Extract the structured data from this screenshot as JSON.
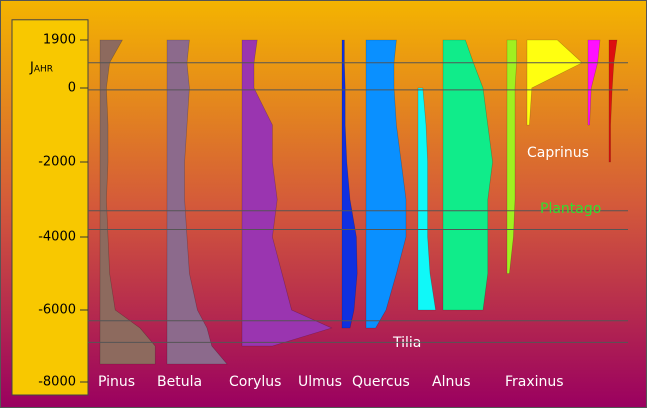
{
  "chart_data": {
    "type": "pollen-profile",
    "y_label": "Jahr",
    "ylim": [
      -8000,
      2700
    ],
    "yticks": [
      1900,
      0,
      -2000,
      -4000,
      -6000,
      -8000
    ],
    "ages": [
      1900,
      1000,
      0,
      -1000,
      -2000,
      -3000,
      -4000,
      -5000,
      -6000,
      -6500,
      -7000,
      -7500
    ],
    "zone_lines": [
      1000,
      -50,
      -3300,
      -3800,
      -6300,
      -6900
    ],
    "annotations": [
      "Plantago"
    ],
    "series": [
      {
        "name": "Pinus",
        "color": "#8d6a5e",
        "values": [
          28,
          12,
          8,
          10,
          10,
          8,
          10,
          12,
          19,
          50,
          69,
          69
        ]
      },
      {
        "name": "Betula",
        "color": "#8c6a8c",
        "values": [
          28,
          25,
          28,
          25,
          22,
          22,
          25,
          28,
          38,
          50,
          56,
          75
        ]
      },
      {
        "name": "Corylus",
        "color": "#9a35b0",
        "values": [
          19,
          15,
          15,
          38,
          38,
          44,
          38,
          50,
          62,
          112,
          38,
          null
        ]
      },
      {
        "name": "Ulmus",
        "color": "#1030e0",
        "values": [
          3,
          3,
          4,
          4,
          6,
          10,
          18,
          19,
          15,
          10,
          null,
          null
        ]
      },
      {
        "name": "Quercus",
        "color": "#0a90ff",
        "values": [
          38,
          35,
          35,
          38,
          44,
          50,
          50,
          38,
          25,
          12,
          null,
          null
        ]
      },
      {
        "name": "Tilia",
        "color": "#10f8f8",
        "values": [
          null,
          null,
          6,
          10,
          12,
          12,
          12,
          15,
          22,
          null,
          null,
          null
        ]
      },
      {
        "name": "Alnus",
        "color": "#10ec8a",
        "values": [
          28,
          38,
          50,
          56,
          62,
          56,
          56,
          56,
          50,
          null,
          null,
          null
        ]
      },
      {
        "name": "Fraxinus",
        "color": "#a0f020",
        "values": [
          12,
          12,
          10,
          10,
          10,
          10,
          8,
          3,
          null,
          null,
          null,
          null
        ]
      },
      {
        "name": "Caprinus",
        "color": "#ffff10",
        "values": [
          38,
          69,
          6,
          3,
          null,
          null,
          null,
          null,
          null,
          null,
          null,
          null
        ]
      },
      {
        "name": null,
        "color": "#ff10ff",
        "values": [
          15,
          12,
          4,
          2,
          null,
          null,
          null,
          null,
          null,
          null,
          null,
          null
        ]
      },
      {
        "name": null,
        "color": "#dd1010",
        "values": [
          10,
          6,
          4,
          2,
          2,
          null,
          null,
          null,
          null,
          null,
          null,
          null
        ]
      }
    ]
  }
}
